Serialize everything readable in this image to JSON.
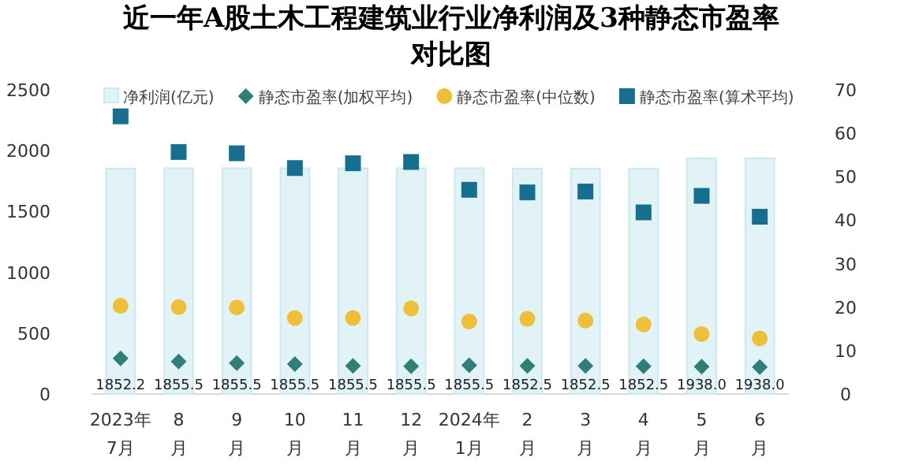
{
  "chart_data": {
    "type": "bar",
    "title": "近一年A股土木工程建筑业行业净利润及3种静态市盈率对比图",
    "categories": [
      "2023年\n7月",
      "8\n月",
      "9\n月",
      "10\n月",
      "11\n月",
      "12\n月",
      "2024年\n1月",
      "2\n月",
      "3\n月",
      "4\n月",
      "5\n月",
      "6\n月"
    ],
    "series": [
      {
        "name": "净利润(亿元)",
        "type": "bar",
        "color": "#e2f3f8",
        "values": [
          1852.2,
          1855.5,
          1855.5,
          1855.5,
          1855.5,
          1855.5,
          1855.5,
          1852.5,
          1852.5,
          1852.5,
          1938.0,
          1938.0
        ],
        "value_labels": [
          "1852.2",
          "1855.5",
          "1855.5",
          "1855.5",
          "1855.5",
          "1855.5",
          "1855.5",
          "1852.5",
          "1852.5",
          "1852.5",
          "1938.0",
          "1938.0"
        ]
      },
      {
        "name": "静态市盈率(加权平均)",
        "type": "scatter",
        "axis": "y2",
        "marker": "diamond",
        "color": "#2f7f78",
        "x": [
          "2023年\n7月",
          "8\n月",
          "9\n月",
          "10\n月",
          "11\n月",
          "12\n月",
          "2024年\n1月",
          "2\n月",
          "3\n月",
          "4\n月",
          "5\n月",
          "6\n月"
        ],
        "values": [
          8.2,
          7.5,
          7.1,
          6.9,
          6.5,
          6.4,
          6.6,
          6.5,
          6.5,
          6.4,
          6.3,
          6.2
        ]
      },
      {
        "name": "静态市盈率(中位数)",
        "type": "scatter",
        "axis": "y2",
        "marker": "circle",
        "color": "#f0bf3a",
        "x": [
          "2023年\n7月",
          "8\n月",
          "9\n月",
          "10\n月",
          "11\n月",
          "12\n月",
          "2024年\n1月",
          "2\n月",
          "3\n月",
          "4\n月",
          "5\n月",
          "6\n月"
        ],
        "values": [
          20.3,
          20.0,
          19.9,
          17.5,
          17.5,
          19.7,
          16.7,
          17.3,
          16.9,
          16.0,
          13.8,
          12.8
        ]
      },
      {
        "name": "静态市盈率(算术平均)",
        "type": "scatter",
        "axis": "y2",
        "marker": "square",
        "color": "#176f8f",
        "x": [
          "2023年\n7月",
          "8\n月",
          "9\n月",
          "10\n月",
          "11\n月",
          "12\n月",
          "2024年\n1月",
          "2\n月",
          "3\n月",
          "4\n月",
          "5\n月",
          "6\n月"
        ],
        "values": [
          63.9,
          55.7,
          55.4,
          52.0,
          53.1,
          53.4,
          47.0,
          46.4,
          46.6,
          41.8,
          45.6,
          40.8
        ]
      }
    ],
    "ylim": [
      0,
      2500
    ],
    "yticks": [
      0,
      500,
      1000,
      1500,
      2000,
      2500
    ],
    "y2lim": [
      0,
      70
    ],
    "y2ticks": [
      0,
      10,
      20,
      30,
      40,
      50,
      60,
      70
    ],
    "legend": "top"
  }
}
